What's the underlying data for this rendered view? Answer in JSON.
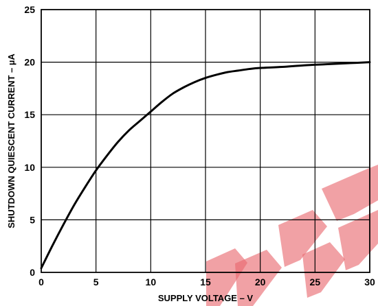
{
  "chart_data": {
    "type": "line",
    "title": "",
    "xlabel": "SUPPLY VOLTAGE – V",
    "ylabel": "SHUTDOWN QUIESCENT CURRENT – µA",
    "xlim": [
      0,
      30
    ],
    "ylim": [
      0,
      25
    ],
    "xticks": [
      0,
      5,
      10,
      15,
      20,
      25,
      30
    ],
    "yticks": [
      0,
      5,
      10,
      15,
      20,
      25
    ],
    "x_tick_labels": [
      "0",
      "5",
      "10",
      "15",
      "20",
      "25",
      "30"
    ],
    "y_tick_labels": [
      "0",
      "5",
      "10",
      "15",
      "20",
      "25"
    ],
    "grid": true,
    "legend": "none",
    "series": [
      {
        "color": "#000000",
        "x": [
          0,
          1,
          2,
          3,
          4,
          5,
          6,
          7,
          8,
          9,
          10,
          11,
          12,
          13,
          14,
          15,
          16,
          17,
          18,
          19,
          20,
          22,
          24,
          26,
          28,
          30
        ],
        "y": [
          0.4,
          2.5,
          4.5,
          6.4,
          8.1,
          9.7,
          11.1,
          12.4,
          13.5,
          14.4,
          15.3,
          16.2,
          17.0,
          17.6,
          18.1,
          18.5,
          18.8,
          19.05,
          19.2,
          19.35,
          19.45,
          19.55,
          19.7,
          19.8,
          19.9,
          20.0
        ]
      }
    ],
    "colors": {
      "line": "#000000",
      "grid": "#000000",
      "frame": "#000000",
      "watermark": "#e8686e"
    }
  }
}
